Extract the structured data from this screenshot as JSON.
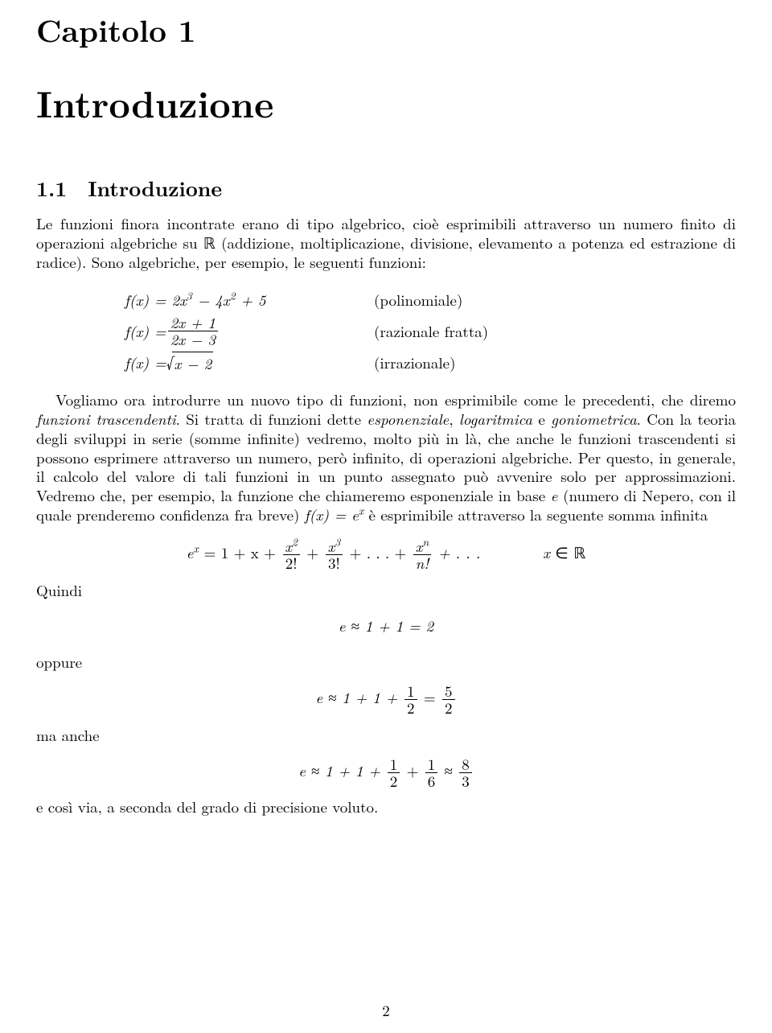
{
  "chapter_label": "Capitolo 1",
  "chapter_title": "Introduzione",
  "section_title": "1.1 Introduzione",
  "para1_a": "Le funzioni finora incontrate erano di tipo algebrico, cioè esprimibili attraverso un numero finito di operazioni algebriche su ",
  "real_sym": "ℝ",
  "para1_b": " (addizione, moltiplicazione, divisione, elevamento a potenza ed estrazione di radice). Sono algebriche, per esempio, le seguenti funzioni:",
  "eq1": {
    "lhs": "f(x) = 2x",
    "exp1": "3",
    "mid1": " − 4x",
    "exp2": "2",
    "tail1": " + 5",
    "label": "(polinomiale)"
  },
  "eq2": {
    "lhs_pre": "f(x) = ",
    "num": "2x + 1",
    "den": "2x − 3",
    "label": "(razionale fratta)"
  },
  "eq3": {
    "lhs_pre": "f(x) = ",
    "radicand": "x − 2",
    "label": "(irrazionale)"
  },
  "para2_a": "Vogliamo ora introdurre un nuovo tipo di funzioni, non esprimibile come le precedenti, che diremo ",
  "para2_ital1": "funzioni trascendenti",
  "para2_b": ". Si tratta di funzioni dette ",
  "para2_ital2": "esponenziale",
  "para2_b2": ", ",
  "para2_ital3": "logaritmica",
  "para2_b3": " e ",
  "para2_ital4": "goniometrica",
  "para2_c": ". Con la teoria degli sviluppi in serie (somme infinite) vedremo, molto più in là, che anche le funzioni trascendenti si possono esprimere attraverso un numero, però infinito, di operazioni algebriche. Per questo, in generale, il calcolo del valore di tali funzioni in un punto assegnato può avvenire solo per approssimazioni. Vedremo che, per esempio, la funzione che chiameremo esponenziale in base ",
  "e_var": "e",
  "para2_d": " (numero di Nepero, con il quale prenderemo confidenza fra breve) ",
  "fx_eq_ex_a": "f(x) = e",
  "fx_eq_ex_sup": "x",
  "para2_e": " è esprimibile attraverso la seguente somma infinita",
  "seriesrow": {
    "pre": "e",
    "pre_sup": "x",
    "eq": " = 1 + x + ",
    "f1n": "x",
    "f1n_sup": "2",
    "f1d": "2!",
    "plus1": " + ",
    "f2n": "x",
    "f2n_sup": "3",
    "f2d": "3!",
    "plus2": " + . . . + ",
    "f3n": "x",
    "f3n_sup": "n",
    "f3d": "n!",
    "tail": " + . . .        x",
    "tailsym": " ∈ ",
    "tailset": "ℝ"
  },
  "quindi": "Quindi",
  "approx1": "e ≈ 1 + 1 = 2",
  "oppure": "oppure",
  "approx2": {
    "pre": "e ≈ 1 + 1 + ",
    "f1n": "1",
    "f1d": "2",
    "eq": " = ",
    "f2n": "5",
    "f2d": "2"
  },
  "maanche": "ma anche",
  "approx3": {
    "pre": "e ≈ 1 + 1 + ",
    "f1n": "1",
    "f1d": "2",
    "plus": " + ",
    "f2n": "1",
    "f2d": "6",
    "approx": " ≈ ",
    "f3n": "8",
    "f3d": "3"
  },
  "closing": "e così via, a seconda del grado di precisione voluto.",
  "page_number": "2",
  "colors": {
    "text": "#000000",
    "bg": "#ffffff"
  },
  "fontsizes": {
    "chapter_label": 38,
    "chapter_title": 46,
    "section": 26,
    "body": 19
  }
}
